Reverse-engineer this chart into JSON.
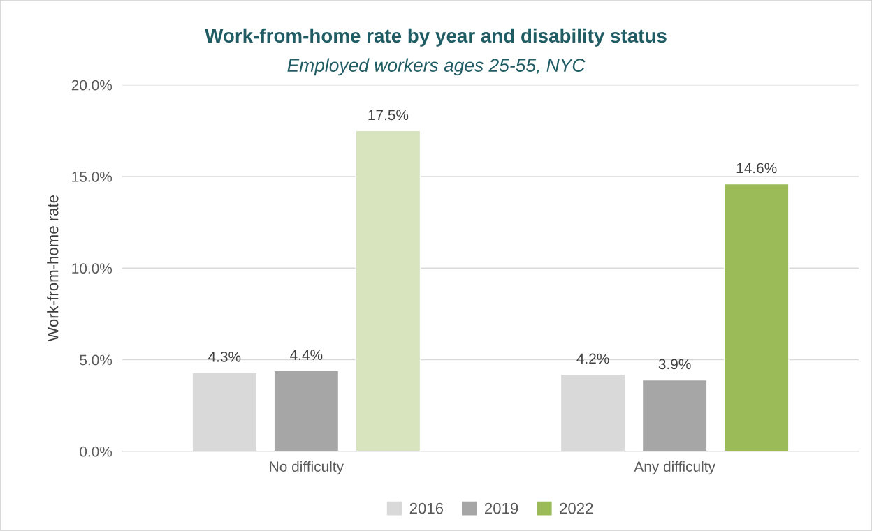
{
  "chart_data": {
    "type": "bar",
    "title": "Work-from-home rate by year and disability status",
    "subtitle": "Employed workers ages 25-55, NYC",
    "ylabel": "Work-from-home rate",
    "categories": [
      "No difficulty",
      "Any difficulty"
    ],
    "series": [
      {
        "name": "2016",
        "color": "#d9d9d9",
        "values": [
          4.3,
          4.2
        ],
        "value_labels": [
          "4.3%",
          "4.2%"
        ]
      },
      {
        "name": "2019",
        "color": "#a6a6a6",
        "values": [
          4.4,
          3.9
        ],
        "value_labels": [
          "4.4%",
          "3.9%"
        ]
      },
      {
        "name": "2022",
        "color": "#9bbb59",
        "colors": [
          "#d7e4bd",
          "#9bbb59"
        ],
        "values": [
          17.5,
          14.6
        ],
        "value_labels": [
          "17.5%",
          "14.6%"
        ]
      }
    ],
    "ylim": [
      0,
      20
    ],
    "yticks": [
      {
        "value": 0,
        "label": "0.0%"
      },
      {
        "value": 5,
        "label": "5.0%"
      },
      {
        "value": 10,
        "label": "10.0%"
      },
      {
        "value": 15,
        "label": "15.0%"
      },
      {
        "value": 20,
        "label": "20.0%"
      }
    ],
    "grid": "y",
    "legend": "bottom"
  }
}
